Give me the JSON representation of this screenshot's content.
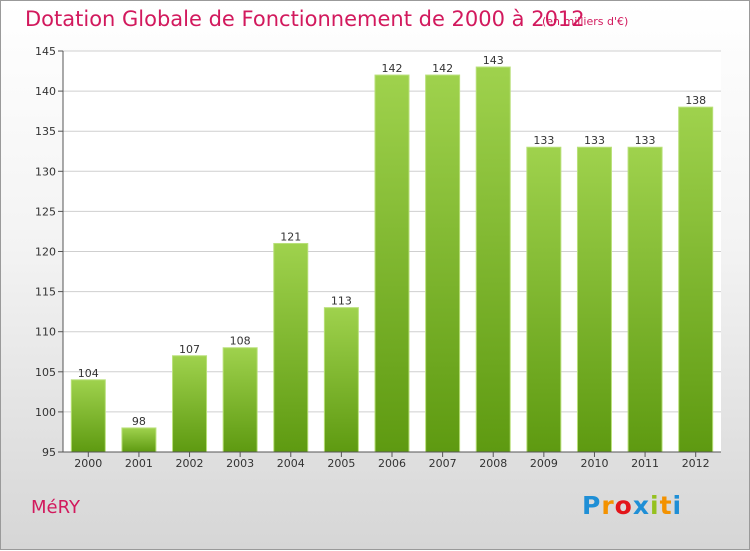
{
  "title": "Dotation Globale de Fonctionnement de 2000 à 2012",
  "subtitle": "(en milliers d'€)",
  "commune": "MéRY",
  "logo": {
    "text": "Proxiti",
    "letters": [
      {
        "ch": "P",
        "color": "#1f8fd6"
      },
      {
        "ch": "r",
        "color": "#f39200"
      },
      {
        "ch": "o",
        "color": "#e3151a"
      },
      {
        "ch": "x",
        "color": "#1f8fd6"
      },
      {
        "ch": "i",
        "color": "#95c11f"
      },
      {
        "ch": "t",
        "color": "#f39200"
      },
      {
        "ch": "i",
        "color": "#1f8fd6"
      }
    ]
  },
  "colors": {
    "title": "#d2195d",
    "bar_light": "#9fd24d",
    "bar_dark": "#5e9a11",
    "grid": "#cfcfcf"
  },
  "chart_data": {
    "type": "bar",
    "categories": [
      "2000",
      "2001",
      "2002",
      "2003",
      "2004",
      "2005",
      "2006",
      "2007",
      "2008",
      "2009",
      "2010",
      "2011",
      "2012"
    ],
    "values": [
      104,
      98,
      107,
      108,
      121,
      113,
      142,
      142,
      143,
      133,
      133,
      133,
      138
    ],
    "ylim": [
      95,
      145
    ],
    "yticks": [
      95,
      100,
      105,
      110,
      115,
      120,
      125,
      130,
      135,
      140,
      145
    ],
    "grid": true,
    "data_labels": true
  }
}
